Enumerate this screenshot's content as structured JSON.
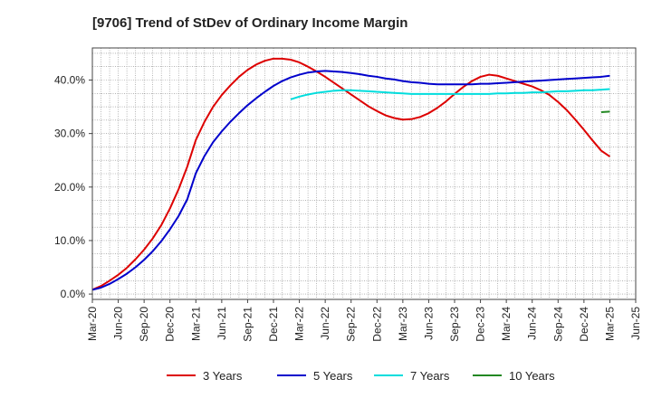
{
  "chart_data": {
    "type": "line",
    "title": "[9706]  Trend of StDev of Ordinary Income Margin",
    "xlabel": "",
    "ylabel": "",
    "x_ticks": [
      "Mar-20",
      "Jun-20",
      "Sep-20",
      "Dec-20",
      "Mar-21",
      "Jun-21",
      "Sep-21",
      "Dec-21",
      "Mar-22",
      "Jun-22",
      "Sep-22",
      "Dec-22",
      "Mar-23",
      "Jun-23",
      "Sep-23",
      "Dec-23",
      "Mar-24",
      "Jun-24",
      "Sep-24",
      "Dec-24",
      "Mar-25",
      "Jun-25"
    ],
    "y_ticks": [
      "0.0%",
      "10.0%",
      "20.0%",
      "30.0%",
      "40.0%"
    ],
    "y_tick_values": [
      0,
      10,
      20,
      30,
      40
    ],
    "ylim": [
      -1,
      46
    ],
    "grid": true,
    "legend_position": "bottom",
    "series": [
      {
        "name": "3 Years",
        "color": "#dd0000",
        "x": [
          "Mar-20",
          "Apr-20",
          "May-20",
          "Jun-20",
          "Jul-20",
          "Aug-20",
          "Sep-20",
          "Oct-20",
          "Nov-20",
          "Dec-20",
          "Jan-21",
          "Feb-21",
          "Mar-21",
          "Apr-21",
          "May-21",
          "Jun-21",
          "Jul-21",
          "Aug-21",
          "Sep-21",
          "Oct-21",
          "Nov-21",
          "Dec-21",
          "Jan-22",
          "Feb-22",
          "Mar-22",
          "Apr-22",
          "May-22",
          "Jun-22",
          "Jul-22",
          "Aug-22",
          "Sep-22",
          "Oct-22",
          "Nov-22",
          "Dec-22",
          "Jan-23",
          "Feb-23",
          "Mar-23",
          "Apr-23",
          "May-23",
          "Jun-23",
          "Jul-23",
          "Aug-23",
          "Sep-23",
          "Oct-23",
          "Nov-23",
          "Dec-23",
          "Jan-24",
          "Feb-24",
          "Mar-24",
          "Apr-24",
          "May-24",
          "Jun-24",
          "Jul-24",
          "Aug-24",
          "Sep-24",
          "Oct-24",
          "Nov-24",
          "Dec-24",
          "Jan-25",
          "Feb-25",
          "Mar-25"
        ],
        "values": [
          0.8,
          1.5,
          2.5,
          3.6,
          4.9,
          6.5,
          8.3,
          10.4,
          12.9,
          16.0,
          19.6,
          23.8,
          28.8,
          32.2,
          35.0,
          37.2,
          39.0,
          40.6,
          41.9,
          42.9,
          43.6,
          44.0,
          44.0,
          43.8,
          43.3,
          42.5,
          41.6,
          40.6,
          39.5,
          38.4,
          37.3,
          36.2,
          35.1,
          34.2,
          33.4,
          32.9,
          32.6,
          32.7,
          33.1,
          33.8,
          34.8,
          36.0,
          37.4,
          38.7,
          39.8,
          40.6,
          41.0,
          40.8,
          40.3,
          39.8,
          39.3,
          38.8,
          38.1,
          37.2,
          35.9,
          34.4,
          32.6,
          30.7,
          28.7,
          26.8,
          25.7
        ]
      },
      {
        "name": "5 Years",
        "color": "#0000cc",
        "x": [
          "Mar-20",
          "Apr-20",
          "May-20",
          "Jun-20",
          "Jul-20",
          "Aug-20",
          "Sep-20",
          "Oct-20",
          "Nov-20",
          "Dec-20",
          "Jan-21",
          "Feb-21",
          "Mar-21",
          "Apr-21",
          "May-21",
          "Jun-21",
          "Jul-21",
          "Aug-21",
          "Sep-21",
          "Oct-21",
          "Nov-21",
          "Dec-21",
          "Jan-22",
          "Feb-22",
          "Mar-22",
          "Apr-22",
          "May-22",
          "Jun-22",
          "Jul-22",
          "Aug-22",
          "Sep-22",
          "Oct-22",
          "Nov-22",
          "Dec-22",
          "Jan-23",
          "Feb-23",
          "Mar-23",
          "Apr-23",
          "May-23",
          "Jun-23",
          "Jul-23",
          "Aug-23",
          "Sep-23",
          "Oct-23",
          "Nov-23",
          "Dec-23",
          "Jan-24",
          "Feb-24",
          "Mar-24",
          "Apr-24",
          "May-24",
          "Jun-24",
          "Jul-24",
          "Aug-24",
          "Sep-24",
          "Oct-24",
          "Nov-24",
          "Dec-24",
          "Jan-25",
          "Feb-25",
          "Mar-25"
        ],
        "values": [
          0.8,
          1.2,
          1.9,
          2.8,
          3.8,
          5.0,
          6.4,
          8.0,
          9.9,
          12.1,
          14.6,
          17.7,
          22.6,
          25.8,
          28.4,
          30.4,
          32.2,
          33.8,
          35.3,
          36.6,
          37.8,
          38.9,
          39.8,
          40.5,
          41.0,
          41.4,
          41.6,
          41.7,
          41.6,
          41.5,
          41.3,
          41.1,
          40.8,
          40.6,
          40.3,
          40.1,
          39.8,
          39.6,
          39.5,
          39.3,
          39.2,
          39.2,
          39.2,
          39.2,
          39.2,
          39.3,
          39.3,
          39.4,
          39.5,
          39.6,
          39.7,
          39.8,
          39.9,
          40.0,
          40.1,
          40.2,
          40.3,
          40.4,
          40.5,
          40.6,
          40.8
        ]
      },
      {
        "name": "7 Years",
        "color": "#00dddd",
        "x": [
          "Feb-22",
          "Mar-22",
          "Apr-22",
          "May-22",
          "Jun-22",
          "Jul-22",
          "Aug-22",
          "Sep-22",
          "Oct-22",
          "Nov-22",
          "Dec-22",
          "Jan-23",
          "Feb-23",
          "Mar-23",
          "Apr-23",
          "May-23",
          "Jun-23",
          "Jul-23",
          "Aug-23",
          "Sep-23",
          "Oct-23",
          "Nov-23",
          "Dec-23",
          "Jan-24",
          "Feb-24",
          "Mar-24",
          "Apr-24",
          "May-24",
          "Jun-24",
          "Jul-24",
          "Aug-24",
          "Sep-24",
          "Oct-24",
          "Nov-24",
          "Dec-24",
          "Jan-25",
          "Feb-25",
          "Mar-25"
        ],
        "values": [
          36.4,
          36.9,
          37.3,
          37.6,
          37.8,
          38.0,
          38.1,
          38.1,
          38.0,
          37.9,
          37.8,
          37.7,
          37.6,
          37.5,
          37.4,
          37.4,
          37.4,
          37.4,
          37.4,
          37.4,
          37.4,
          37.4,
          37.4,
          37.4,
          37.5,
          37.5,
          37.6,
          37.6,
          37.7,
          37.7,
          37.8,
          37.9,
          37.9,
          38.0,
          38.1,
          38.1,
          38.2,
          38.3
        ]
      },
      {
        "name": "10 Years",
        "color": "#228822",
        "x": [
          "Feb-25",
          "Mar-25"
        ],
        "values": [
          34.0,
          34.1
        ]
      }
    ]
  }
}
